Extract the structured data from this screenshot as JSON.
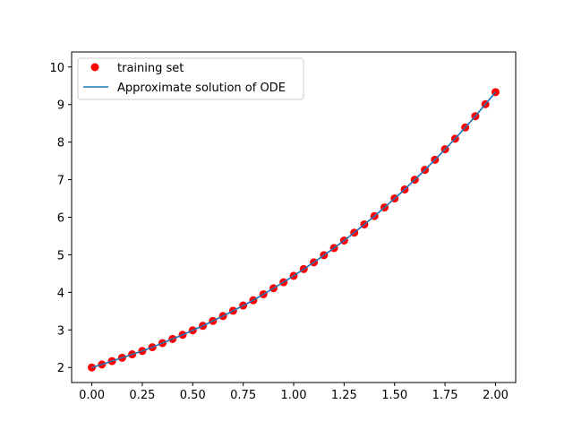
{
  "chart_data": {
    "type": "line",
    "title": "",
    "xlabel": "",
    "ylabel": "",
    "xlim": [
      -0.1,
      2.1
    ],
    "ylim": [
      1.6,
      10.4
    ],
    "xticks": [
      0.0,
      0.25,
      0.5,
      0.75,
      1.0,
      1.25,
      1.5,
      1.75,
      2.0
    ],
    "xtick_labels": [
      "0.00",
      "0.25",
      "0.50",
      "0.75",
      "1.00",
      "1.25",
      "1.50",
      "1.75",
      "2.00"
    ],
    "yticks": [
      2,
      3,
      4,
      5,
      6,
      7,
      8,
      9,
      10
    ],
    "ytick_labels": [
      "2",
      "3",
      "4",
      "5",
      "6",
      "7",
      "8",
      "9",
      "10"
    ],
    "grid": false,
    "legend_position": "upper-left",
    "series": [
      {
        "name": "training set",
        "kind": "scatter",
        "color": "#ff0000",
        "x": [
          0.0,
          0.05,
          0.1,
          0.15,
          0.2,
          0.25,
          0.3,
          0.35,
          0.4,
          0.45,
          0.5,
          0.55,
          0.6,
          0.65,
          0.7,
          0.75,
          0.8,
          0.85,
          0.9,
          0.95,
          1.0,
          1.05,
          1.1,
          1.15,
          1.2,
          1.25,
          1.3,
          1.35,
          1.4,
          1.45,
          1.5,
          1.55,
          1.6,
          1.65,
          1.7,
          1.75,
          1.8,
          1.85,
          1.9,
          1.95,
          2.0
        ],
        "y": [
          2.0,
          2.08,
          2.17,
          2.26,
          2.35,
          2.44,
          2.54,
          2.65,
          2.76,
          2.87,
          2.99,
          3.11,
          3.24,
          3.37,
          3.51,
          3.65,
          3.79,
          3.95,
          4.11,
          4.27,
          4.44,
          4.62,
          4.8,
          4.99,
          5.18,
          5.38,
          5.59,
          5.81,
          6.03,
          6.26,
          6.5,
          6.74,
          7.0,
          7.26,
          7.53,
          7.81,
          8.09,
          8.39,
          8.69,
          9.01,
          9.33
        ]
      },
      {
        "name": "Approximate solution of ODE",
        "kind": "line",
        "color": "#1f77b4",
        "x": [
          0.0,
          0.05,
          0.1,
          0.15,
          0.2,
          0.25,
          0.3,
          0.35,
          0.4,
          0.45,
          0.5,
          0.55,
          0.6,
          0.65,
          0.7,
          0.75,
          0.8,
          0.85,
          0.9,
          0.95,
          1.0,
          1.05,
          1.1,
          1.15,
          1.2,
          1.25,
          1.3,
          1.35,
          1.4,
          1.45,
          1.5,
          1.55,
          1.6,
          1.65,
          1.7,
          1.75,
          1.8,
          1.85,
          1.9,
          1.95,
          2.0
        ],
        "y": [
          2.0,
          2.08,
          2.17,
          2.26,
          2.35,
          2.44,
          2.54,
          2.65,
          2.76,
          2.87,
          2.99,
          3.11,
          3.24,
          3.37,
          3.51,
          3.65,
          3.79,
          3.95,
          4.11,
          4.27,
          4.44,
          4.62,
          4.8,
          4.99,
          5.18,
          5.38,
          5.59,
          5.81,
          6.03,
          6.26,
          6.5,
          6.74,
          7.0,
          7.26,
          7.53,
          7.81,
          8.09,
          8.39,
          8.69,
          9.01,
          9.33
        ]
      }
    ]
  }
}
